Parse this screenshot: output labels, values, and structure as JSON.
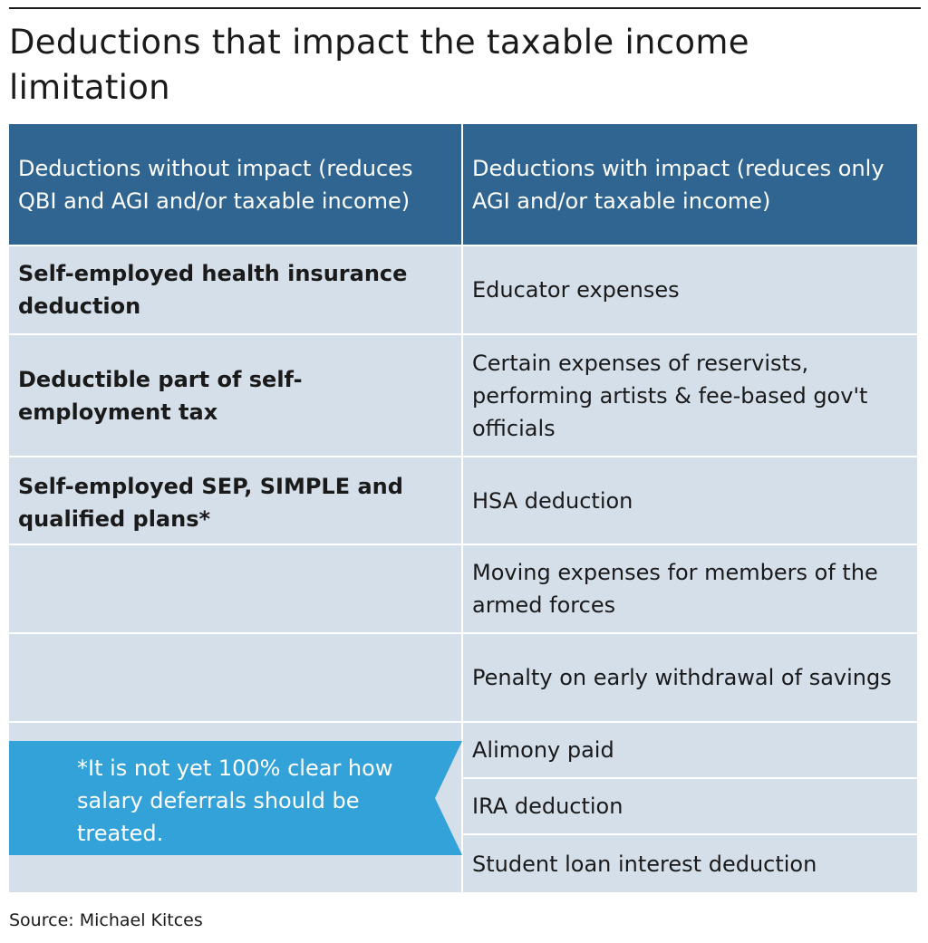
{
  "title": "Deductions that impact the taxable income limitation",
  "table": {
    "headers": [
      "Deductions without impact (reduces QBI and AGI and/or taxable income)",
      "Deductions with impact (reduces only AGI and/or taxable income)"
    ],
    "rows": [
      [
        "Self-employed health insurance deduction",
        "Educator expenses"
      ],
      [
        "Deductible part of self-employment tax",
        "Certain expenses of reservists, performing artists & fee-based gov't officials"
      ],
      [
        "Self-employed SEP, SIMPLE and qualified plans*",
        "HSA deduction"
      ],
      [
        "",
        "Moving expenses for members of the armed forces"
      ],
      [
        "",
        "Penalty on early withdrawal of savings"
      ],
      [
        "",
        "Alimony paid"
      ],
      [
        "",
        "IRA deduction"
      ],
      [
        "",
        "Student loan interest deduction"
      ]
    ]
  },
  "footnote": "*It is not yet 100% clear how salary deferrals should be treated.",
  "source": "Source: Michael Kitces",
  "colors": {
    "header_bg": "#2f6590",
    "body_bg": "#d5dfea",
    "note_bg": "#33a2d8"
  }
}
